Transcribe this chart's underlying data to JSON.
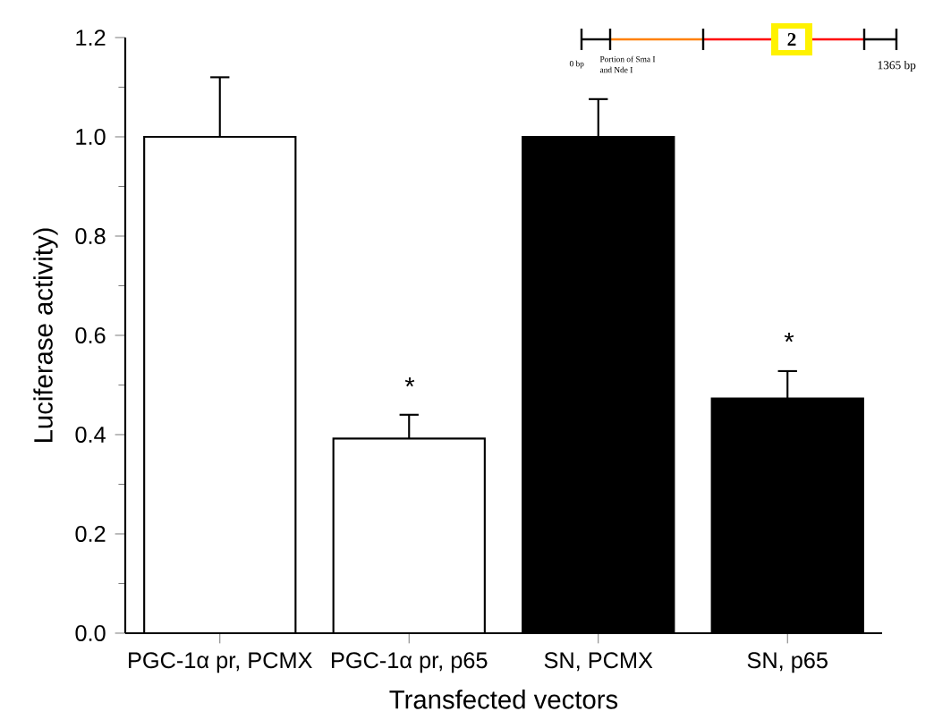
{
  "chart_data": {
    "type": "bar",
    "xlabel": "Transfected vectors",
    "ylabel": "Luciferase activity)",
    "categories": [
      "PGC-1α pr, PCMX",
      "PGC-1α pr, p65",
      "SN, PCMX",
      "SN, p65"
    ],
    "values": [
      1.0,
      0.392,
      1.0,
      0.473
    ],
    "colors": [
      "#ffffff",
      "#ffffff",
      "#000000",
      "#000000"
    ],
    "errors": [
      [
        1.0,
        1.12
      ],
      [
        0.392,
        0.44
      ],
      [
        1.0,
        1.076
      ],
      [
        0.473,
        0.528
      ]
    ],
    "ylim": [
      0,
      1.2
    ],
    "yticks": [
      {
        "value": 0,
        "label": "0.0"
      },
      0.2,
      0.4,
      0.6,
      0.8,
      {
        "value": 1,
        "label": "1.0"
      },
      1.2
    ],
    "grid": false,
    "annotations": [
      "*",
      "*",
      "0 bp",
      "Portion of Sma I",
      "and Nde I",
      "2",
      "1365 bp"
    ]
  }
}
